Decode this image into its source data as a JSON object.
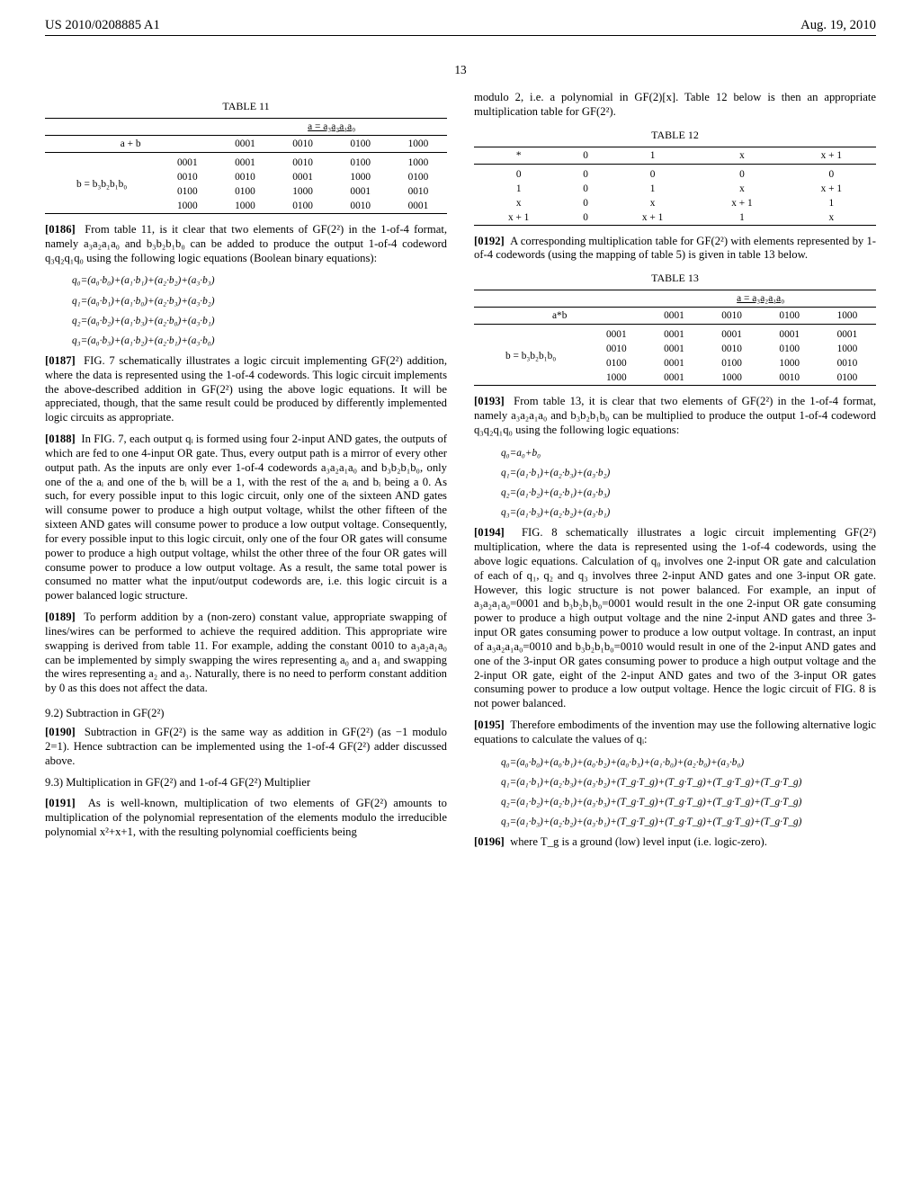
{
  "header": {
    "pubnum": "US 2010/0208885 A1",
    "date": "Aug. 19, 2010"
  },
  "pagenum": "13",
  "table11": {
    "title": "TABLE 11",
    "colhead_span": "a = a₃a₂a₁a₀",
    "rowhead": "a + b",
    "cols": [
      "0001",
      "0010",
      "0100",
      "1000"
    ],
    "bhead": "b = b₃b₂b₁b₀",
    "brows": [
      "0001",
      "0010",
      "0100",
      "1000"
    ],
    "data": [
      [
        "0001",
        "0010",
        "0100",
        "1000"
      ],
      [
        "0010",
        "0001",
        "1000",
        "0100"
      ],
      [
        "0100",
        "1000",
        "0001",
        "0010"
      ],
      [
        "1000",
        "0100",
        "0010",
        "0001"
      ]
    ]
  },
  "p0186": "From table 11, is it clear that two elements of GF(2²) in the 1-of-4 format, namely a₃a₂a₁a₀ and b₃b₂b₁b₀ can be added to produce the output 1-of-4 codeword q₃q₂q₁q₀ using the following logic equations (Boolean binary equations):",
  "eq186": [
    "q₀=(a₀·b₀)+(a₁·b₁)+(a₂·b₂)+(a₃·b₃)",
    "q₁=(a₀·b₁)+(a₁·b₀)+(a₂·b₃)+(a₃·b₂)",
    "q₂=(a₀·b₂)+(a₁·b₃)+(a₂·b₀)+(a₃·b₁)",
    "q₃=(a₀·b₃)+(a₁·b₂)+(a₂·b₁)+(a₃·b₀)"
  ],
  "p0187": "FIG. 7 schematically illustrates a logic circuit implementing GF(2²) addition, where the data is represented using the 1-of-4 codewords. This logic circuit implements the above-described addition in GF(2²) using the above logic equations. It will be appreciated, though, that the same result could be produced by differently implemented logic circuits as appropriate.",
  "p0188": "In FIG. 7, each output qᵢ is formed using four 2-input AND gates, the outputs of which are fed to one 4-input OR gate. Thus, every output path is a mirror of every other output path. As the inputs are only ever 1-of-4 codewords a₃a₂a₁a₀ and b₃b₂b₁b₀, only one of the aᵢ and one of the bᵢ will be a 1, with the rest of the aᵢ and bᵢ being a 0. As such, for every possible input to this logic circuit, only one of the sixteen AND gates will consume power to produce a high output voltage, whilst the other fifteen of the sixteen AND gates will consume power to produce a low output voltage. Consequently, for every possible input to this logic circuit, only one of the four OR gates will consume power to produce a high output voltage, whilst the other three of the four OR gates will consume power to produce a low output voltage. As a result, the same total power is consumed no matter what the input/output codewords are, i.e. this logic circuit is a power balanced logic structure.",
  "p0189": "To perform addition by a (non-zero) constant value, appropriate swapping of lines/wires can be performed to achieve the required addition. This appropriate wire swapping is derived from table 11. For example, adding the constant 0010 to a₃a₂a₁a₀ can be implemented by simply swapping the wires representing a₀ and a₁ and swapping the wires representing a₂ and a₃. Naturally, there is no need to perform constant addition by 0 as this does not affect the data.",
  "sec92": "9.2) Subtraction in GF(2²)",
  "p0190": "Subtraction in GF(2²) is the same way as addition in GF(2²) (as −1 modulo 2=1). Hence subtraction can be implemented using the 1-of-4 GF(2²) adder discussed above.",
  "sec93": "9.3) Multiplication in GF(2²) and 1-of-4 GF(2²) Multiplier",
  "p0191": "As is well-known, multiplication of two elements of GF(2²) amounts to multiplication of the polynomial representation of the elements modulo the irreducible polynomial x²+x+1, with the resulting polynomial coefficients being",
  "col2_intro": "modulo 2, i.e. a polynomial in GF(2)[x]. Table 12 below is then an appropriate multiplication table for GF(2²).",
  "table12": {
    "title": "TABLE 12",
    "header": [
      "*",
      "0",
      "1",
      "x",
      "x + 1"
    ],
    "rows": [
      [
        "0",
        "0",
        "0",
        "0",
        "0"
      ],
      [
        "1",
        "0",
        "1",
        "x",
        "x + 1"
      ],
      [
        "x",
        "0",
        "x",
        "x + 1",
        "1"
      ],
      [
        "x + 1",
        "0",
        "x + 1",
        "1",
        "x"
      ]
    ]
  },
  "p0192": "A corresponding multiplication table for GF(2²) with elements represented by 1-of-4 codewords (using the mapping of table 5) is given in table 13 below.",
  "table13": {
    "title": "TABLE 13",
    "colhead_span": "a = a₃a₂a₁a₀",
    "rowhead": "a*b",
    "cols": [
      "0001",
      "0010",
      "0100",
      "1000"
    ],
    "bhead": "b = b₃b₂b₁b₀",
    "brows": [
      "0001",
      "0010",
      "0100",
      "1000"
    ],
    "data": [
      [
        "0001",
        "0001",
        "0001",
        "0001"
      ],
      [
        "0001",
        "0010",
        "0100",
        "1000"
      ],
      [
        "0001",
        "0100",
        "1000",
        "0010"
      ],
      [
        "0001",
        "1000",
        "0010",
        "0100"
      ]
    ]
  },
  "p0193": "From table 13, it is clear that two elements of GF(2²) in the 1-of-4 format, namely a₃a₂a₁a₀ and b₃b₂b₁b₀ can be multiplied to produce the output 1-of-4 codeword q₃q₂q₁q₀ using the following logic equations:",
  "eq193": [
    "q₀=a₀+b₀",
    "q₁=(a₁·b₁)+(a₂·b₃)+(a₃·b₂)",
    "q₂=(a₁·b₂)+(a₂·b₁)+(a₃·b₃)",
    "q₃=(a₁·b₃)+(a₂·b₂)+(a₃·b₁)"
  ],
  "p0194": "FIG. 8 schematically illustrates a logic circuit implementing GF(2²) multiplication, where the data is represented using the 1-of-4 codewords, using the above logic equations. Calculation of q₀ involves one 2-input OR gate and calculation of each of q₁, q₂ and q₃ involves three 2-input AND gates and one 3-input OR gate. However, this logic structure is not power balanced. For example, an input of a₃a₂a₁a₀=0001 and b₃b₂b₁b₀=0001 would result in the one 2-input OR gate consuming power to produce a high output voltage and the nine 2-input AND gates and three 3-input OR gates consuming power to produce a low output voltage. In contrast, an input of a₃a₂a₁a₀=0010 and b₃b₂b₁b₀=0010 would result in one of the 2-input AND gates and one of the 3-input OR gates consuming power to produce a high output voltage and the 2-input OR gate, eight of the 2-input AND gates and two of the 3-input OR gates consuming power to produce a low output voltage. Hence the logic circuit of FIG. 8 is not power balanced.",
  "p0195": "Therefore embodiments of the invention may use the following alternative logic equations to calculate the values of qᵢ:",
  "eq195": [
    "q₀=(a₀·b₀)+(a₀·b₁)+(a₀·b₂)+(a₀·b₃)+(a₁·b₀)+(a₂·b₀)+(a₃·b₀)",
    "q₁=(a₁·b₁)+(a₂·b₃)+(a₃·b₂)+(T_g·T_g)+(T_g·T_g)+(T_g·T_g)+(T_g·T_g)",
    "q₂=(a₁·b₂)+(a₂·b₁)+(a₃·b₃)+(T_g·T_g)+(T_g·T_g)+(T_g·T_g)+(T_g·T_g)",
    "q₃=(a₁·b₃)+(a₂·b₂)+(a₃·b₁)+(T_g·T_g)+(T_g·T_g)+(T_g·T_g)+(T_g·T_g)"
  ],
  "p0196": "where T_g is a ground (low) level input (i.e. logic-zero)."
}
